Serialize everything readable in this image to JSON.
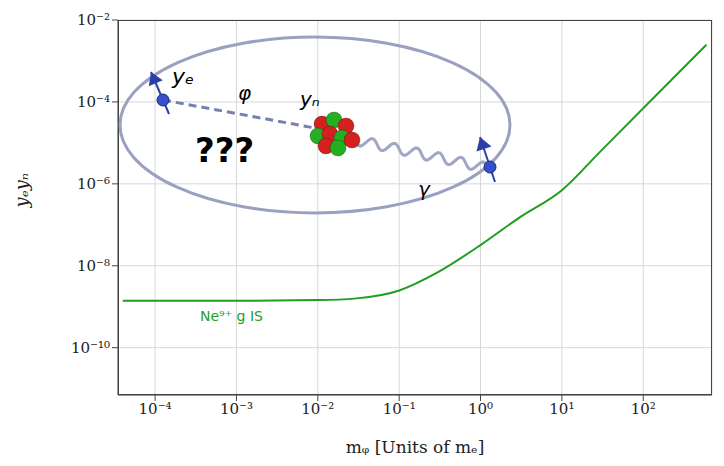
{
  "chart_data": {
    "type": "line",
    "log": true,
    "grid": true,
    "x_label": "mᵩ [Units of mₑ]",
    "y_label": "yₑyₙ",
    "xlim": [
      3.5e-05,
      700
    ],
    "ylim": [
      7e-12,
      0.01
    ],
    "xticks": [
      {
        "value": 0.0001,
        "label": "10⁻⁴"
      },
      {
        "value": 0.001,
        "label": "10⁻³"
      },
      {
        "value": 0.01,
        "label": "10⁻²"
      },
      {
        "value": 0.1,
        "label": "10⁻¹"
      },
      {
        "value": 1,
        "label": "10⁰"
      },
      {
        "value": 10,
        "label": "10¹"
      },
      {
        "value": 100,
        "label": "10²"
      }
    ],
    "yticks": [
      {
        "value": 1e-10,
        "label": "10⁻¹⁰"
      },
      {
        "value": 1e-08,
        "label": "10⁻⁸"
      },
      {
        "value": 1e-06,
        "label": "10⁻⁶"
      },
      {
        "value": 0.0001,
        "label": "10⁻⁴"
      },
      {
        "value": 0.01,
        "label": "10⁻²"
      }
    ],
    "x": [
      4e-05,
      0.001,
      0.01,
      0.03,
      0.1,
      0.3,
      1,
      3,
      10,
      30,
      100,
      600
    ],
    "series": [
      {
        "name": "Ne⁹⁺ g IS",
        "color": "#1f9e1f",
        "values": [
          1.4e-09,
          1.4e-09,
          1.45e-09,
          1.6e-09,
          2.5e-09,
          7e-09,
          3.2e-08,
          1.5e-07,
          7e-07,
          6.3e-06,
          7e-05,
          0.0025
        ]
      }
    ],
    "annotations": [
      "yₑ",
      "φ",
      "yₙ",
      "???",
      "γ"
    ]
  }
}
